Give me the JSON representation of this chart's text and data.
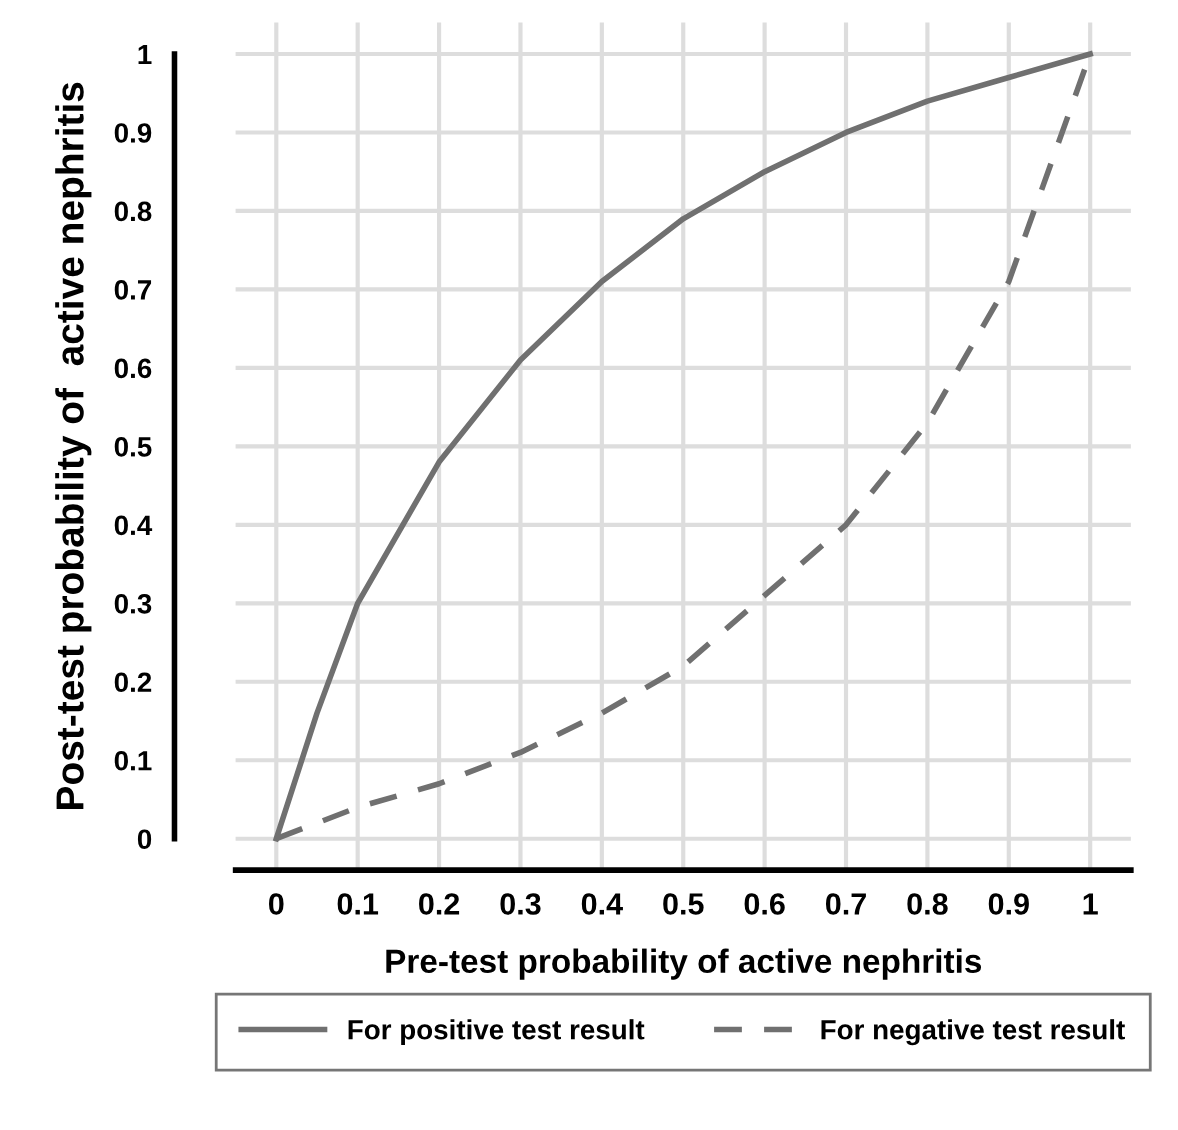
{
  "chart_data": {
    "type": "line",
    "xlabel": "Pre-test probability of active nephritis",
    "ylabel": "Post-test probability of  active nephritis",
    "x": [
      0,
      0.05,
      0.1,
      0.2,
      0.3,
      0.4,
      0.5,
      0.6,
      0.7,
      0.8,
      0.9,
      1
    ],
    "series": [
      {
        "name": "For positive test result",
        "color": "#707070",
        "line_style": "solid",
        "values": [
          0,
          0.16,
          0.3,
          0.48,
          0.61,
          0.71,
          0.79,
          0.85,
          0.9,
          0.94,
          0.97,
          1
        ]
      },
      {
        "name": "For negative test result",
        "color": "#707070",
        "line_style": "dashed",
        "values": [
          0,
          0.02,
          0.04,
          0.07,
          0.11,
          0.16,
          0.22,
          0.31,
          0.4,
          0.53,
          0.71,
          1
        ]
      }
    ],
    "xlim": [
      -0.05,
      1.05
    ],
    "ylim": [
      -0.04,
      1.04
    ],
    "xticks": [
      0,
      0.1,
      0.2,
      0.3,
      0.4,
      0.5,
      0.6,
      0.7,
      0.8,
      0.9,
      1
    ],
    "yticks": [
      0,
      0.1,
      0.2,
      0.3,
      0.4,
      0.5,
      0.6,
      0.7,
      0.8,
      0.9,
      1
    ],
    "grid": true,
    "legend": "bottom",
    "marker": "none"
  }
}
